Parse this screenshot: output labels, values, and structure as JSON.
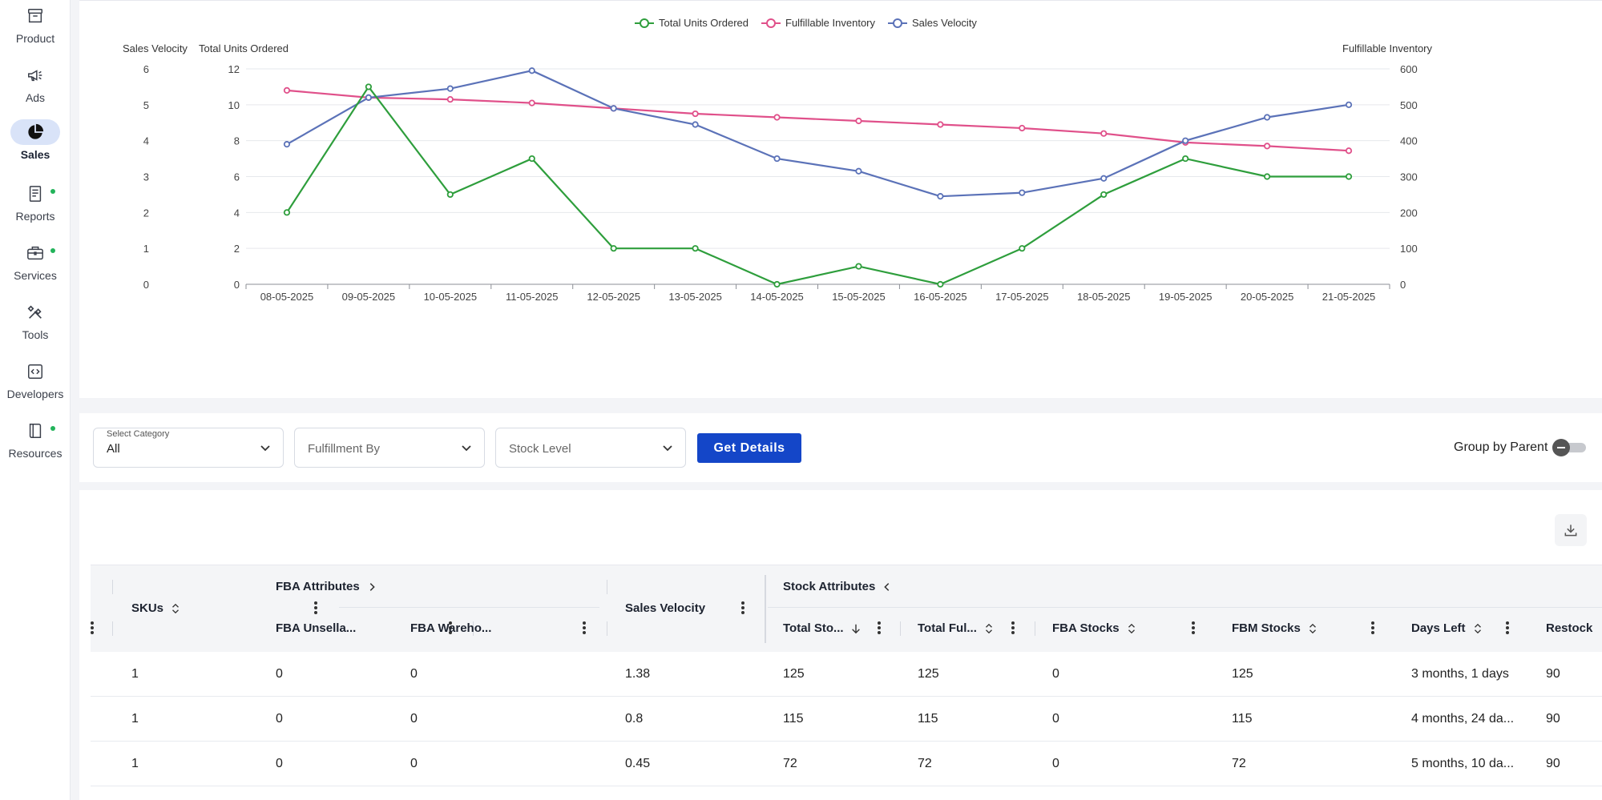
{
  "sidebar": {
    "items": [
      {
        "label": "Product",
        "icon": "archive-box-icon",
        "active": false,
        "dot": false
      },
      {
        "label": "Ads",
        "icon": "megaphone-icon",
        "active": false,
        "dot": false
      },
      {
        "label": "Sales",
        "icon": "pie-chart-icon",
        "active": true,
        "dot": false
      },
      {
        "label": "Reports",
        "icon": "report-icon",
        "active": false,
        "dot": true
      },
      {
        "label": "Services",
        "icon": "briefcase-icon",
        "active": false,
        "dot": true
      },
      {
        "label": "Tools",
        "icon": "tools-icon",
        "active": false,
        "dot": false
      },
      {
        "label": "Developers",
        "icon": "code-icon",
        "active": false,
        "dot": false
      },
      {
        "label": "Resources",
        "icon": "book-icon",
        "active": false,
        "dot": true
      }
    ],
    "dot_color": "#22b35a"
  },
  "chart_data": {
    "type": "line",
    "categories": [
      "08-05-2025",
      "09-05-2025",
      "10-05-2025",
      "11-05-2025",
      "12-05-2025",
      "13-05-2025",
      "14-05-2025",
      "15-05-2025",
      "16-05-2025",
      "17-05-2025",
      "18-05-2025",
      "19-05-2025",
      "20-05-2025",
      "21-05-2025"
    ],
    "series": [
      {
        "name": "Total Units Ordered",
        "axis": "left-inner",
        "color": "#2e9e3c",
        "values": [
          4,
          11,
          5,
          7,
          2,
          2,
          0,
          1,
          0,
          2,
          5,
          7,
          6,
          6
        ]
      },
      {
        "name": "Fulfillable Inventory",
        "axis": "right",
        "color": "#e0508a",
        "values": [
          540,
          520,
          515,
          505,
          490,
          475,
          465,
          455,
          445,
          435,
          420,
          395,
          385,
          372
        ]
      },
      {
        "name": "Sales Velocity",
        "axis": "left-outer",
        "color": "#5b72b8",
        "values": [
          3.9,
          5.2,
          5.45,
          5.95,
          4.9,
          4.45,
          3.5,
          3.15,
          2.45,
          2.55,
          2.95,
          4.0,
          4.65,
          5.0
        ]
      }
    ],
    "axes": {
      "left_outer": {
        "label": "Sales Velocity",
        "ticks": [
          "0",
          "1",
          "2",
          "3",
          "4",
          "5",
          "6"
        ],
        "range": [
          0,
          6
        ]
      },
      "left_inner": {
        "label": "Total Units Ordered",
        "ticks": [
          "0",
          "2",
          "4",
          "6",
          "8",
          "10",
          "12"
        ],
        "range": [
          0,
          12
        ]
      },
      "right": {
        "label": "Fulfillable Inventory",
        "ticks": [
          "0",
          "100",
          "200",
          "300",
          "400",
          "500",
          "600"
        ],
        "range": [
          0,
          600
        ]
      }
    },
    "legend_position": "top-center",
    "grid": true
  },
  "filters": {
    "category": {
      "caption": "Select Category",
      "value": "All"
    },
    "fulfillment": {
      "placeholder": "Fulfillment By"
    },
    "stock_level": {
      "placeholder": "Stock Level"
    },
    "get_details_label": "Get Details",
    "group_by_parent_label": "Group by Parent"
  },
  "table": {
    "group_headers": {
      "fba": "FBA Attributes",
      "stock": "Stock Attributes"
    },
    "columns": {
      "skus": "SKUs",
      "fba_unsellable": "FBA Unsella...",
      "fba_warehouse": "FBA Wareho...",
      "sales_velocity": "Sales Velocity",
      "total_stock": "Total Sto...",
      "total_fulfillable": "Total Ful...",
      "fba_stocks": "FBA Stocks",
      "fbm_stocks": "FBM Stocks",
      "days_left": "Days Left",
      "restock": "Restock"
    },
    "rows": [
      {
        "skus": "1",
        "fba_unsellable": "0",
        "fba_warehouse": "0",
        "sales_velocity": "1.38",
        "total_stock": "125",
        "total_fulfillable": "125",
        "fba_stocks": "0",
        "fbm_stocks": "125",
        "days_left": "3 months, 1 days",
        "restock": "90"
      },
      {
        "skus": "1",
        "fba_unsellable": "0",
        "fba_warehouse": "0",
        "sales_velocity": "0.8",
        "total_stock": "115",
        "total_fulfillable": "115",
        "fba_stocks": "0",
        "fbm_stocks": "115",
        "days_left": "4 months, 24 da...",
        "restock": "90"
      },
      {
        "skus": "1",
        "fba_unsellable": "0",
        "fba_warehouse": "0",
        "sales_velocity": "0.45",
        "total_stock": "72",
        "total_fulfillable": "72",
        "fba_stocks": "0",
        "fbm_stocks": "72",
        "days_left": "5 months, 10 da...",
        "restock": "90"
      }
    ]
  },
  "colors": {
    "accent": "#1446c8",
    "active_nav_bg": "#d9e3f8"
  }
}
